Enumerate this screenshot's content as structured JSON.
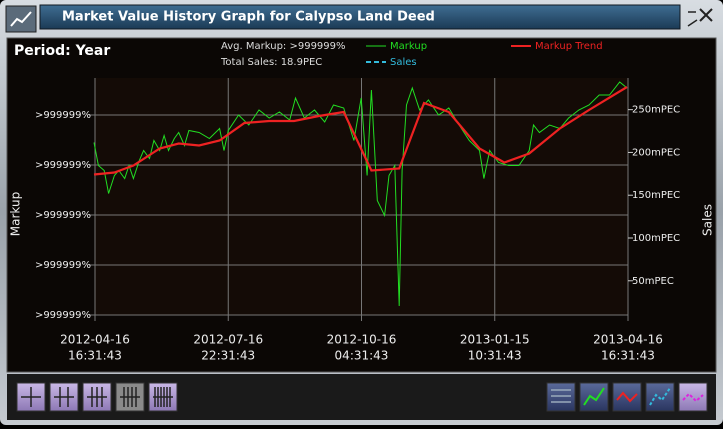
{
  "window": {
    "title": "Market Value History Graph for Calypso Land Deed"
  },
  "period": "Period: Year",
  "stats": {
    "avg_markup": "Avg. Markup: >999999%",
    "total_sales": "Total Sales: 18.9PEC"
  },
  "chart_data": {
    "type": "line",
    "ylabel": "Markup",
    "y2label": "Sales",
    "xlim": [
      "2012-04-16T16:31:43",
      "2013-04-16T16:31:43"
    ],
    "xticks": [
      {
        "value": "2012-04-16T16:31:43",
        "label": [
          "2012-04-16",
          "16:31:43"
        ]
      },
      {
        "value": "2012-07-16T22:31:43",
        "label": [
          "2012-07-16",
          "22:31:43"
        ]
      },
      {
        "value": "2012-10-16T04:31:43",
        "label": [
          "2012-10-16",
          "04:31:43"
        ]
      },
      {
        "value": "2013-01-15T10:31:43",
        "label": [
          "2013-01-15",
          "10:31:43"
        ]
      },
      {
        "value": "2013-04-16T16:31:43",
        "label": [
          "2013-04-16",
          "16:31:43"
        ]
      }
    ],
    "ylim": [
      0,
      4.74
    ],
    "yticks": [
      {
        "value": 0,
        "label": ">999999%"
      },
      {
        "value": 1,
        "label": ">999999%"
      },
      {
        "value": 2,
        "label": ">999999%"
      },
      {
        "value": 3,
        "label": ">999999%"
      },
      {
        "value": 4,
        "label": ">999999%"
      }
    ],
    "y2lim": [
      10,
      287
    ],
    "y2ticks": [
      {
        "value": 50,
        "label": "50mPEC"
      },
      {
        "value": 100,
        "label": "100mPEC"
      },
      {
        "value": 150,
        "label": "150mPEC"
      },
      {
        "value": 200,
        "label": "200mPEC"
      },
      {
        "value": 250,
        "label": "250mPEC"
      }
    ],
    "grid": true,
    "series": [
      {
        "name": "Markup",
        "color": "#22dd22",
        "style": "solid",
        "x": [
          "2012-04-16",
          "2012-04-19",
          "2012-04-23",
          "2012-04-26",
          "2012-04-30",
          "2012-05-03",
          "2012-05-07",
          "2012-05-10",
          "2012-05-13",
          "2012-05-17",
          "2012-05-20",
          "2012-05-24",
          "2012-05-27",
          "2012-05-31",
          "2012-06-03",
          "2012-06-06",
          "2012-06-10",
          "2012-06-13",
          "2012-06-17",
          "2012-06-20",
          "2012-06-27",
          "2012-07-04",
          "2012-07-11",
          "2012-07-14",
          "2012-07-17",
          "2012-07-24",
          "2012-07-31",
          "2012-08-07",
          "2012-08-14",
          "2012-08-21",
          "2012-08-28",
          "2012-09-01",
          "2012-09-07",
          "2012-09-14",
          "2012-09-21",
          "2012-09-27",
          "2012-10-04",
          "2012-10-11",
          "2012-10-16",
          "2012-10-20",
          "2012-10-23",
          "2012-10-27",
          "2012-11-01",
          "2012-11-04",
          "2012-11-08",
          "2012-11-11",
          "2012-11-13",
          "2012-11-16",
          "2012-11-20",
          "2012-11-25",
          "2012-12-01",
          "2012-12-08",
          "2012-12-15",
          "2012-12-22",
          "2012-12-29",
          "2013-01-05",
          "2013-01-08",
          "2013-01-12",
          "2013-01-18",
          "2013-01-25",
          "2013-02-01",
          "2013-02-08",
          "2013-02-11",
          "2013-02-15",
          "2013-02-22",
          "2013-03-01",
          "2013-03-07",
          "2013-03-14",
          "2013-03-21",
          "2013-03-28",
          "2013-04-04",
          "2013-04-11",
          "2013-04-16"
        ],
        "values": [
          3.45,
          2.99,
          2.89,
          2.43,
          2.79,
          2.89,
          2.73,
          2.99,
          2.73,
          3.09,
          3.29,
          3.13,
          3.49,
          3.29,
          3.59,
          3.29,
          3.53,
          3.65,
          3.39,
          3.69,
          3.65,
          3.53,
          3.73,
          3.29,
          3.69,
          4.0,
          3.8,
          4.1,
          3.94,
          4.06,
          3.9,
          4.34,
          3.94,
          4.1,
          3.86,
          4.2,
          4.14,
          3.49,
          4.34,
          2.79,
          4.5,
          2.29,
          1.99,
          2.79,
          2.99,
          0.18,
          2.89,
          4.2,
          4.54,
          4.1,
          4.3,
          4.0,
          4.14,
          3.8,
          3.49,
          3.29,
          2.73,
          3.29,
          3.05,
          2.99,
          2.99,
          3.29,
          3.8,
          3.65,
          3.8,
          3.73,
          3.94,
          4.1,
          4.2,
          4.4,
          4.4,
          4.66,
          4.54
        ]
      },
      {
        "name": "Sales",
        "color": "#33bbdd",
        "style": "dashed",
        "axis": "y2",
        "x": [],
        "values": []
      },
      {
        "name": "Markup Trend",
        "color": "#ee2222",
        "style": "solid",
        "x": [
          "2012-04-16",
          "2012-04-30",
          "2012-05-13",
          "2012-05-31",
          "2012-06-13",
          "2012-06-27",
          "2012-07-11",
          "2012-07-28",
          "2012-08-14",
          "2012-08-31",
          "2012-09-17",
          "2012-10-04",
          "2012-10-23",
          "2012-11-11",
          "2012-11-28",
          "2012-12-15",
          "2013-01-05",
          "2013-01-22",
          "2013-02-08",
          "2013-03-01",
          "2013-03-21",
          "2013-04-16"
        ],
        "values": [
          2.81,
          2.85,
          2.99,
          3.33,
          3.43,
          3.39,
          3.49,
          3.84,
          3.88,
          3.88,
          3.98,
          4.06,
          2.89,
          2.93,
          4.24,
          4.06,
          3.33,
          3.05,
          3.23,
          3.73,
          4.1,
          4.56
        ]
      }
    ]
  }
}
